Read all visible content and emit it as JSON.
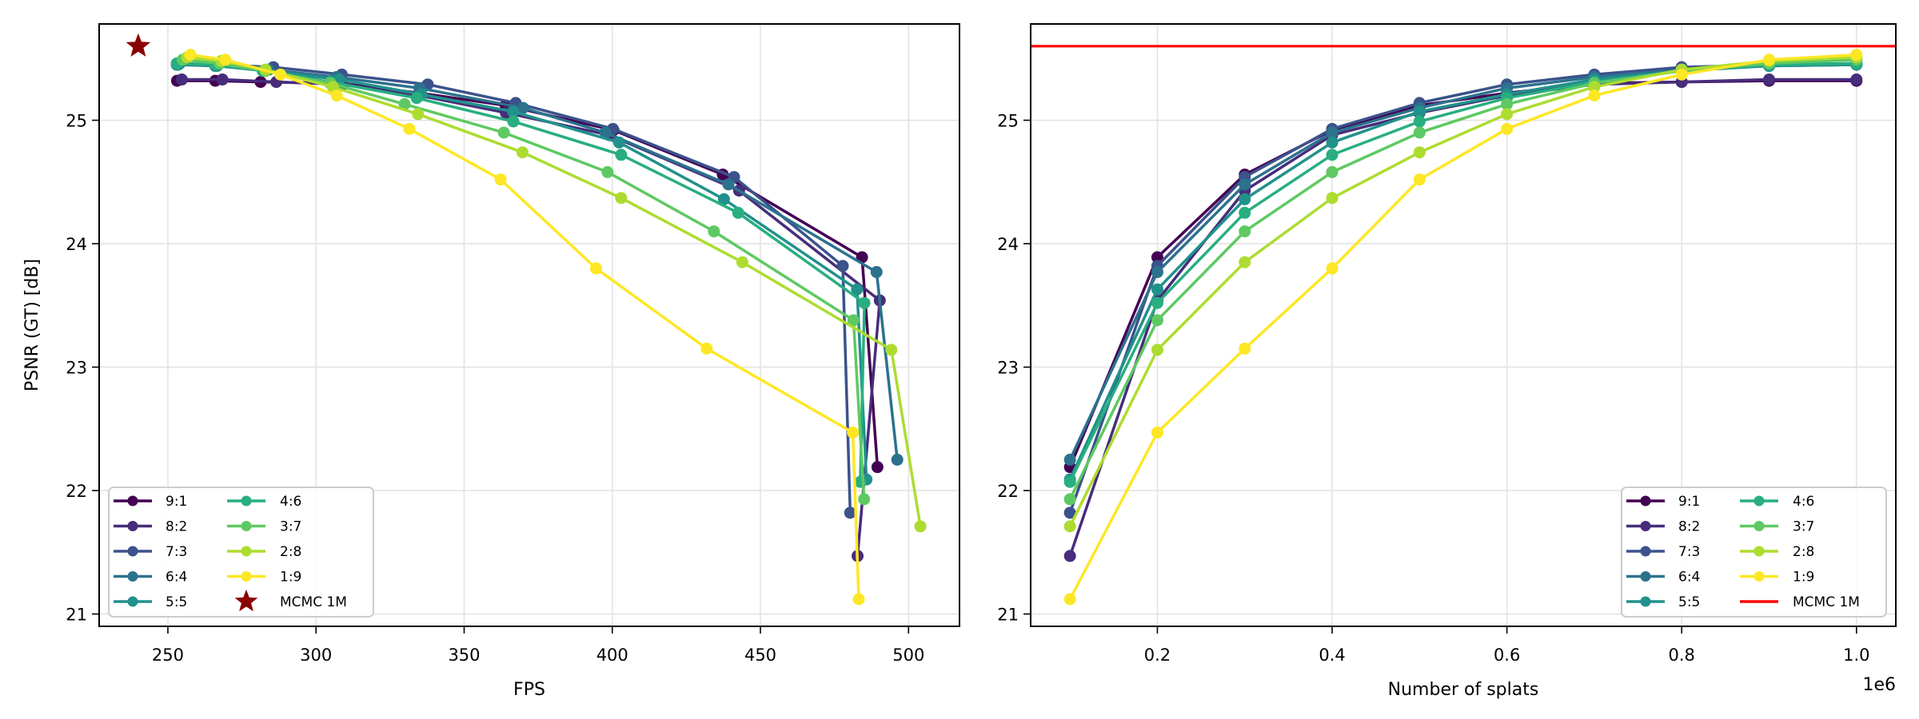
{
  "chart_data": [
    {
      "type": "line",
      "title": "",
      "xlabel": "FPS",
      "ylabel": "PSNR (GT) [dB]",
      "xlim": [
        226.8,
        517.2
      ],
      "ylim": [
        20.9,
        25.78
      ],
      "xticks": [
        250,
        300,
        350,
        400,
        450,
        500
      ],
      "xtick_labels": [
        "250",
        "300",
        "350",
        "400",
        "450",
        "500"
      ],
      "yticks": [
        21,
        22,
        23,
        24,
        25
      ],
      "ytick_labels": [
        "21",
        "22",
        "23",
        "24",
        "25"
      ],
      "grid": true,
      "legend": {
        "placement": "lower left",
        "ncol": 2
      },
      "series": [
        {
          "name": "9:1",
          "color": "#440154",
          "x": [
            489.5,
            484.3,
            437.3,
            400.4,
            364.0,
            335.0,
            308.0,
            281.3,
            266.0,
            253.1
          ],
          "y": [
            22.19,
            23.89,
            24.56,
            24.92,
            25.12,
            25.22,
            25.3,
            25.31,
            25.32,
            25.32
          ]
        },
        {
          "name": "8:2",
          "color": "#472d7b",
          "x": [
            482.8,
            490.3,
            442.8,
            399.0,
            364.1,
            335.0,
            309.0,
            286.6,
            268.4,
            254.7
          ],
          "y": [
            21.47,
            23.54,
            24.43,
            24.88,
            25.06,
            25.2,
            25.29,
            25.31,
            25.33,
            25.33
          ]
        },
        {
          "name": "7:3",
          "color": "#3b528b",
          "x": [
            480.3,
            477.8,
            441.1,
            400.2,
            367.4,
            337.7,
            308.7,
            285.6,
            267.0,
            254.0
          ],
          "y": [
            21.82,
            23.82,
            24.54,
            24.93,
            25.14,
            25.29,
            25.37,
            25.43,
            25.45,
            25.46
          ]
        },
        {
          "name": "6:4",
          "color": "#2c728e",
          "x": [
            496.2,
            489.2,
            439.2,
            397.7,
            369.9,
            334.9,
            306.9,
            284.0,
            266.0,
            253.0
          ],
          "y": [
            22.25,
            23.77,
            24.48,
            24.9,
            25.1,
            25.26,
            25.35,
            25.41,
            25.44,
            25.45
          ]
        },
        {
          "name": "5:5",
          "color": "#21918c",
          "x": [
            485.8,
            482.6,
            437.7,
            402.3,
            366.5,
            335.6,
            307.8,
            283.0,
            266.6,
            253.5
          ],
          "y": [
            22.09,
            23.63,
            24.36,
            24.82,
            25.07,
            25.21,
            25.33,
            25.4,
            25.44,
            25.45
          ]
        },
        {
          "name": "4:6",
          "color": "#28ae80",
          "x": [
            483.7,
            485.1,
            442.5,
            403.0,
            366.6,
            334.0,
            304.8,
            282.0,
            266.0,
            253.0
          ],
          "y": [
            22.07,
            23.52,
            24.25,
            24.72,
            24.99,
            25.18,
            25.31,
            25.4,
            25.45,
            25.46
          ]
        },
        {
          "name": "3:7",
          "color": "#5ec962",
          "x": [
            485.0,
            481.4,
            434.3,
            398.4,
            363.4,
            329.9,
            304.8,
            283.0,
            267.5,
            255.0
          ],
          "y": [
            21.93,
            23.38,
            24.1,
            24.58,
            24.9,
            25.13,
            25.3,
            25.4,
            25.46,
            25.49
          ]
        },
        {
          "name": "2:8",
          "color": "#addc30",
          "x": [
            504.0,
            494.2,
            443.9,
            403.0,
            369.7,
            334.4,
            305.7,
            283.0,
            268.0,
            256.5
          ],
          "y": [
            21.71,
            23.14,
            23.85,
            24.37,
            24.74,
            25.05,
            25.27,
            25.41,
            25.48,
            25.51
          ]
        },
        {
          "name": "1:9",
          "color": "#fde725",
          "x": [
            483.2,
            481.2,
            431.9,
            394.5,
            362.3,
            331.5,
            307.0,
            288.0,
            269.4,
            257.6
          ],
          "y": [
            21.12,
            22.47,
            23.15,
            23.8,
            24.52,
            24.93,
            25.2,
            25.37,
            25.49,
            25.53
          ]
        }
      ],
      "reference": {
        "name": "MCMC 1M",
        "style": "star",
        "color": "#8b0000",
        "x": 240,
        "y": 25.6
      }
    },
    {
      "type": "line",
      "title": "",
      "xlabel": "Number of splats",
      "x_scale_label": "1e6",
      "ylabel": "",
      "xlim": [
        0.055,
        1.045
      ],
      "ylim": [
        20.9,
        25.78
      ],
      "xticks": [
        0.2,
        0.4,
        0.6,
        0.8,
        1.0
      ],
      "xtick_labels": [
        "0.2",
        "0.4",
        "0.6",
        "0.8",
        "1.0"
      ],
      "yticks": [
        21,
        22,
        23,
        24,
        25
      ],
      "ytick_labels": [
        "21",
        "22",
        "23",
        "24",
        "25"
      ],
      "grid": true,
      "legend": {
        "placement": "lower right",
        "ncol": 2
      },
      "x": [
        0.1,
        0.2,
        0.3,
        0.4,
        0.5,
        0.6,
        0.7,
        0.8,
        0.9,
        1.0
      ],
      "series": [
        {
          "name": "9:1",
          "color": "#440154",
          "y": [
            22.19,
            23.89,
            24.56,
            24.92,
            25.12,
            25.22,
            25.3,
            25.31,
            25.32,
            25.32
          ]
        },
        {
          "name": "8:2",
          "color": "#472d7b",
          "y": [
            21.47,
            23.54,
            24.43,
            24.88,
            25.06,
            25.2,
            25.29,
            25.31,
            25.33,
            25.33
          ]
        },
        {
          "name": "7:3",
          "color": "#3b528b",
          "y": [
            21.82,
            23.82,
            24.54,
            24.93,
            25.14,
            25.29,
            25.37,
            25.43,
            25.45,
            25.46
          ]
        },
        {
          "name": "6:4",
          "color": "#2c728e",
          "y": [
            22.25,
            23.77,
            24.48,
            24.9,
            25.1,
            25.26,
            25.35,
            25.41,
            25.44,
            25.45
          ]
        },
        {
          "name": "5:5",
          "color": "#21918c",
          "y": [
            22.09,
            23.63,
            24.36,
            24.82,
            25.07,
            25.21,
            25.33,
            25.4,
            25.44,
            25.45
          ]
        },
        {
          "name": "4:6",
          "color": "#28ae80",
          "y": [
            22.07,
            23.52,
            24.25,
            24.72,
            24.99,
            25.18,
            25.31,
            25.4,
            25.45,
            25.46
          ]
        },
        {
          "name": "3:7",
          "color": "#5ec962",
          "y": [
            21.93,
            23.38,
            24.1,
            24.58,
            24.9,
            25.13,
            25.3,
            25.4,
            25.46,
            25.49
          ]
        },
        {
          "name": "2:8",
          "color": "#addc30",
          "y": [
            21.71,
            23.14,
            23.85,
            24.37,
            24.74,
            25.05,
            25.27,
            25.41,
            25.48,
            25.51
          ]
        },
        {
          "name": "1:9",
          "color": "#fde725",
          "y": [
            21.12,
            22.47,
            23.15,
            23.8,
            24.52,
            24.93,
            25.2,
            25.37,
            25.49,
            25.53
          ]
        }
      ],
      "reference": {
        "name": "MCMC 1M",
        "style": "hline",
        "color": "#ff0000",
        "y": 25.6
      }
    }
  ]
}
